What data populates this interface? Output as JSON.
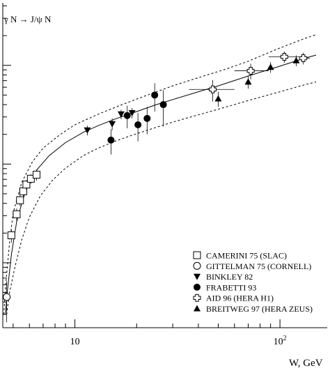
{
  "chart_data": {
    "type": "scatter",
    "title": "γ N → J/ψ N",
    "xlabel": "W, GeV",
    "ylabel": "",
    "xscale": "log",
    "yscale": "log",
    "xlim": [
      4.45,
      170
    ],
    "ylim": [
      0.22,
      430
    ],
    "xticks_major": [
      {
        "value": 10,
        "label": "10"
      },
      {
        "value": 100,
        "label": "10^2"
      }
    ],
    "grid": false,
    "legend_position": "bottom-right",
    "series": [
      {
        "name": "CAMERINI 75 (SLAC)",
        "marker": "open-square",
        "points": [
          {
            "x": 4.9,
            "y": 1.9,
            "err": 0.3
          },
          {
            "x": 5.2,
            "y": 3.1,
            "err": 0.45
          },
          {
            "x": 5.4,
            "y": 4.3,
            "err": 0.55
          },
          {
            "x": 5.6,
            "y": 5.3,
            "err": 0.6
          },
          {
            "x": 5.8,
            "y": 6.2,
            "err": 0.7
          },
          {
            "x": 6.1,
            "y": 7.1,
            "err": 0.8
          },
          {
            "x": 6.5,
            "y": 7.8,
            "err": 1.0
          }
        ]
      },
      {
        "name": "GITTELMAN 75 (CORNELL)",
        "marker": "open-circle",
        "points": [
          {
            "x": 4.65,
            "y": 0.45,
            "err": 0.2
          }
        ]
      },
      {
        "name": "BINKLEY 82",
        "marker": "filled-triangle-down",
        "points": [
          {
            "x": 11.5,
            "y": 22,
            "err": 2.5
          },
          {
            "x": 15.2,
            "y": 25.5,
            "err": 3.5
          },
          {
            "x": 16.8,
            "y": 32,
            "err": 3.5
          },
          {
            "x": 19.0,
            "y": 33,
            "err": 4.0
          }
        ]
      },
      {
        "name": "FRABETTI 93",
        "marker": "filled-circle",
        "points": [
          {
            "x": 15.0,
            "y": 17.5,
            "err": 5
          },
          {
            "x": 18.0,
            "y": 31,
            "err": 8
          },
          {
            "x": 20.3,
            "y": 25,
            "err": 8
          },
          {
            "x": 22.5,
            "y": 29,
            "err": 9
          },
          {
            "x": 24.5,
            "y": 50,
            "err": 16
          },
          {
            "x": 27.0,
            "y": 40,
            "err": 16
          }
        ]
      },
      {
        "name": "AID 96 (HERA H1)",
        "marker": "open-cross",
        "points": [
          {
            "x": 47,
            "y": 57,
            "err": 14,
            "xerr": [
              36,
              60
            ]
          },
          {
            "x": 72,
            "y": 88,
            "err": 16,
            "xerr": [
              60,
              88
            ]
          },
          {
            "x": 105,
            "y": 122,
            "err": 16,
            "xerr": [
              88,
              125
            ]
          },
          {
            "x": 130,
            "y": 118,
            "err": 16,
            "xerr": [
              125,
              140
            ]
          }
        ]
      },
      {
        "name": "BREITWEG 97 (HERA ZEUS)",
        "marker": "filled-triangle-up",
        "points": [
          {
            "x": 50,
            "y": 46,
            "err": 8
          },
          {
            "x": 70,
            "y": 68,
            "err": 10
          },
          {
            "x": 90,
            "y": 96,
            "err": 12
          },
          {
            "x": 120,
            "y": 112,
            "err": 14
          }
        ]
      }
    ],
    "curves": [
      {
        "style": "solid",
        "points": [
          [
            4.58,
            0.3
          ],
          [
            4.7,
            0.55
          ],
          [
            4.9,
            1.2
          ],
          [
            5.2,
            2.6
          ],
          [
            5.6,
            4.5
          ],
          [
            6.0,
            6.6
          ],
          [
            6.6,
            9.0
          ],
          [
            7.5,
            12.2
          ],
          [
            9,
            16.5
          ],
          [
            11,
            21
          ],
          [
            13,
            24.5
          ],
          [
            16,
            29
          ],
          [
            20,
            34
          ],
          [
            25,
            40
          ],
          [
            30,
            45
          ],
          [
            40,
            54
          ],
          [
            50,
            62
          ],
          [
            70,
            78
          ],
          [
            100,
            98
          ],
          [
            130,
            117
          ],
          [
            150,
            127
          ]
        ]
      },
      {
        "style": "dashed",
        "points": [
          [
            4.5,
            0.3
          ],
          [
            4.6,
            0.6
          ],
          [
            4.8,
            1.6
          ],
          [
            5.0,
            3.2
          ],
          [
            5.5,
            6.5
          ],
          [
            6.2,
            10.5
          ],
          [
            7.0,
            14.5
          ],
          [
            8.5,
            20
          ],
          [
            10,
            25
          ],
          [
            13,
            32
          ],
          [
            17,
            40
          ],
          [
            22,
            49
          ],
          [
            30,
            62
          ],
          [
            40,
            75
          ],
          [
            55,
            92
          ],
          [
            70,
            110
          ],
          [
            100,
            150
          ],
          [
            130,
            185
          ],
          [
            150,
            205
          ]
        ]
      },
      {
        "style": "dashed",
        "points": [
          [
            4.65,
            0.3
          ],
          [
            4.8,
            0.5
          ],
          [
            5.1,
            0.9
          ],
          [
            5.5,
            1.7
          ],
          [
            6.0,
            2.9
          ],
          [
            6.8,
            4.8
          ],
          [
            7.8,
            6.9
          ],
          [
            9,
            9.1
          ],
          [
            11,
            12.2
          ],
          [
            13,
            14.5
          ],
          [
            16,
            17.3
          ],
          [
            20,
            20.3
          ],
          [
            25,
            23.6
          ],
          [
            30,
            26.6
          ],
          [
            40,
            31.5
          ],
          [
            55,
            38
          ],
          [
            70,
            44
          ],
          [
            100,
            54
          ],
          [
            130,
            63
          ],
          [
            150,
            68
          ]
        ]
      }
    ]
  }
}
